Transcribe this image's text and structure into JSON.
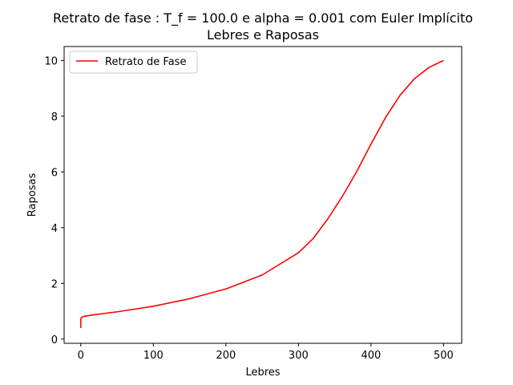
{
  "chart_data": {
    "type": "line",
    "title": "Retrato de fase : T_f = 100.0 e alpha = 0.001 com Euler Implícito",
    "subtitle": "Lebres e Raposas",
    "xlabel": "Lebres",
    "ylabel": "Raposas",
    "xlim": [
      -23,
      525
    ],
    "ylim": [
      -0.15,
      10.5
    ],
    "xticks": [
      0,
      100,
      200,
      300,
      400,
      500
    ],
    "yticks": [
      0,
      2,
      4,
      6,
      8,
      10
    ],
    "grid": false,
    "legend_position": "top-left",
    "series": [
      {
        "name": "Retrato de Fase",
        "color": "#ff0000",
        "x": [
          0,
          0,
          0.5,
          2,
          5,
          20,
          50,
          100,
          150,
          200,
          250,
          300,
          320,
          340,
          360,
          380,
          400,
          420,
          440,
          460,
          480,
          500
        ],
        "y": [
          0.4,
          0.72,
          0.76,
          0.79,
          0.82,
          0.88,
          0.98,
          1.18,
          1.45,
          1.8,
          2.3,
          3.1,
          3.6,
          4.3,
          5.1,
          6.0,
          7.0,
          7.95,
          8.75,
          9.35,
          9.75,
          10.0
        ]
      }
    ]
  }
}
